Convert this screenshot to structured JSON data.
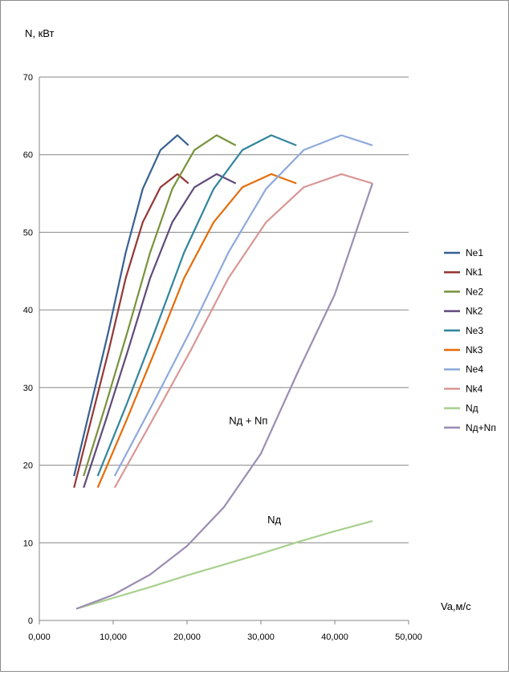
{
  "chart_data": {
    "type": "line",
    "title": "",
    "ylabel": "N, кВт",
    "xlabel": "Va,м/с",
    "xlim": [
      0,
      50
    ],
    "ylim": [
      0,
      70
    ],
    "x_ticks": [
      0,
      10,
      20,
      30,
      40,
      50
    ],
    "x_tick_labels": [
      "0,000",
      "10,000",
      "20,000",
      "30,000",
      "40,000",
      "50,000"
    ],
    "y_ticks": [
      0,
      10,
      20,
      30,
      40,
      50,
      60,
      70
    ],
    "y_tick_labels": [
      "0",
      "10",
      "20",
      "30",
      "40",
      "50",
      "60",
      "70"
    ],
    "grid": "horizontal",
    "legend_position": "right",
    "annotations": [
      {
        "text": "Nд + Nп",
        "x": 28.3,
        "y": 25.3
      },
      {
        "text": "Nд",
        "x": 31.8,
        "y": 12.5
      }
    ],
    "series": [
      {
        "name": "Ne1",
        "color": "#376092",
        "x": [
          4.7,
          7.0,
          9.4,
          11.7,
          14.0,
          16.4,
          18.7,
          20.2
        ],
        "y": [
          18.6,
          27.8,
          37.4,
          47.4,
          55.6,
          60.6,
          62.5,
          61.2
        ]
      },
      {
        "name": "Nk1",
        "color": "#953735",
        "x": [
          4.7,
          7.0,
          9.4,
          11.7,
          14.0,
          16.4,
          18.7,
          20.2
        ],
        "y": [
          17.1,
          25.8,
          34.8,
          44.1,
          51.3,
          55.8,
          57.5,
          56.3
        ]
      },
      {
        "name": "Ne2",
        "color": "#77933C",
        "x": [
          6.0,
          9.0,
          12.0,
          15.0,
          18.0,
          21.0,
          24.0,
          26.6
        ],
        "y": [
          18.6,
          27.8,
          37.4,
          47.4,
          55.6,
          60.6,
          62.5,
          61.2
        ]
      },
      {
        "name": "Nk2",
        "color": "#604A7B",
        "x": [
          6.0,
          9.0,
          12.0,
          15.0,
          18.0,
          21.0,
          24.0,
          26.6
        ],
        "y": [
          17.1,
          25.8,
          34.8,
          44.1,
          51.3,
          55.8,
          57.5,
          56.3
        ]
      },
      {
        "name": "Ne3",
        "color": "#31859C",
        "x": [
          7.9,
          11.8,
          15.7,
          19.6,
          23.6,
          27.5,
          31.4,
          34.8
        ],
        "y": [
          18.6,
          27.8,
          37.4,
          47.4,
          55.6,
          60.6,
          62.5,
          61.2
        ]
      },
      {
        "name": "Nk3",
        "color": "#E46C0A",
        "x": [
          7.9,
          11.8,
          15.7,
          19.6,
          23.6,
          27.5,
          31.4,
          34.8
        ],
        "y": [
          17.1,
          25.8,
          34.8,
          44.1,
          51.3,
          55.8,
          57.5,
          56.3
        ]
      },
      {
        "name": "Ne4",
        "color": "#8EA9DB",
        "x": [
          10.2,
          15.3,
          20.5,
          25.6,
          30.7,
          35.8,
          40.9,
          45.1
        ],
        "y": [
          18.6,
          27.8,
          37.4,
          47.4,
          55.6,
          60.6,
          62.5,
          61.2
        ]
      },
      {
        "name": "Nk4",
        "color": "#D99694",
        "x": [
          10.2,
          15.3,
          20.5,
          25.6,
          30.7,
          35.8,
          40.9,
          45.1
        ],
        "y": [
          17.1,
          25.8,
          34.8,
          44.1,
          51.3,
          55.8,
          57.5,
          56.3
        ]
      },
      {
        "name": "Nд",
        "color": "#A8D08D",
        "x": [
          5.0,
          10.0,
          15.0,
          20.0,
          25.0,
          30.0,
          35.0,
          40.0,
          45.1
        ],
        "y": [
          1.5,
          2.9,
          4.3,
          5.8,
          7.2,
          8.6,
          10.1,
          11.5,
          12.8
        ]
      },
      {
        "name": "Nд+Nп",
        "color": "#9C8DB3",
        "x": [
          5.0,
          10.0,
          15.0,
          20.0,
          25.0,
          30.0,
          35.0,
          40.0,
          45.1
        ],
        "y": [
          1.5,
          3.3,
          5.9,
          9.6,
          14.6,
          21.5,
          32.0,
          42.0,
          56.3
        ]
      }
    ]
  }
}
